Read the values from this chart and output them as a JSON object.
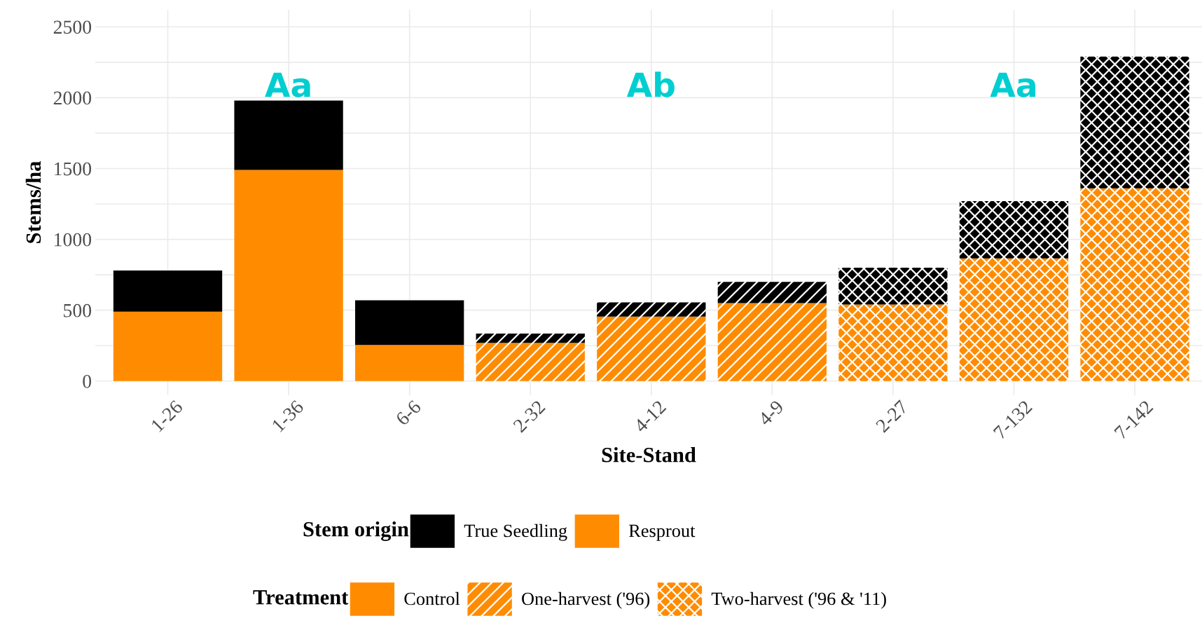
{
  "chart_data": {
    "type": "bar",
    "stacked": true,
    "xlabel": "Site-Stand",
    "ylabel": "Stems/ha",
    "legend_title": "Stem origin",
    "categories": [
      "1-26",
      "1-36",
      "6-6",
      "2-32",
      "4-12",
      "4-9",
      "2-27",
      "7-132",
      "7-142"
    ],
    "series": [
      {
        "name": "Resprout",
        "color": "#ff8c00",
        "values": [
          490,
          1490,
          255,
          270,
          455,
          550,
          540,
          865,
          1360
        ]
      },
      {
        "name": "True Seedling",
        "color": "#000000",
        "values": [
          290,
          490,
          315,
          65,
          100,
          150,
          260,
          405,
          930
        ]
      }
    ],
    "annotations": [
      "Aa",
      "Ab",
      "Aa",
      "Treatment",
      "Control",
      "One-harvest ('96)",
      "Two-harvest ('96 & '11)"
    ],
    "ylim": [
      -100,
      2620
    ],
    "yticks": [
      0,
      500,
      1000,
      1500,
      2000,
      2500
    ],
    "grid": true,
    "legend": "bottom"
  }
}
